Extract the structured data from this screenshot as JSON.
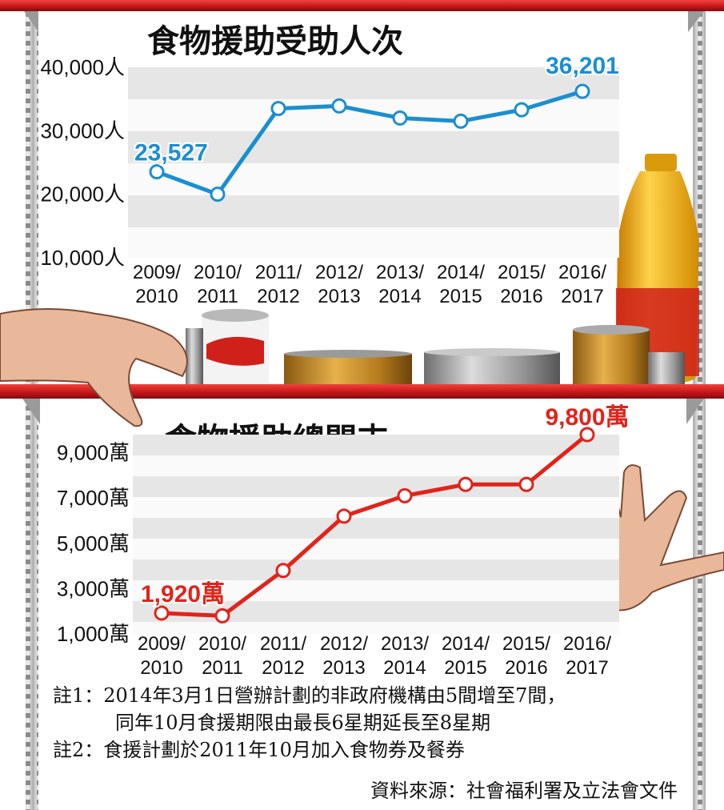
{
  "colors": {
    "shelf_red": "#d4201c",
    "line_blue": "#1a8fd0",
    "line_red": "#e2231a",
    "band_gray": "#e6e6e6"
  },
  "chart_data": [
    {
      "type": "line",
      "title": "食物援助受助人次",
      "x": [
        "2009/\n2010",
        "2010/\n2011",
        "2011/\n2012",
        "2012/\n2013",
        "2013/\n2014",
        "2014/\n2015",
        "2015/\n2016",
        "2016/\n2017"
      ],
      "yticks": [
        "10,000人",
        "20,000人",
        "30,000人",
        "40,000人"
      ],
      "ylim": [
        10000,
        40000
      ],
      "series": [
        {
          "values": [
            23527,
            20000,
            33500,
            33900,
            32000,
            31500,
            33300,
            36201
          ]
        }
      ],
      "annotations": [
        {
          "index": 0,
          "text": "23,527"
        },
        {
          "index": 7,
          "text": "36,201"
        }
      ],
      "color": "#1a8fd0",
      "grid": "alternating bands"
    },
    {
      "type": "line",
      "title": "食物援助總開支",
      "x": [
        "2009/\n2010",
        "2010/\n2011",
        "2011/\n2012",
        "2012/\n2013",
        "2013/\n2014",
        "2014/\n2015",
        "2015/\n2016",
        "2016/\n2017"
      ],
      "yticks": [
        "1,000萬",
        "3,000萬",
        "5,000萬",
        "7,000萬",
        "9,000萬"
      ],
      "ylim": [
        1000,
        9800
      ],
      "series": [
        {
          "values": [
            1920,
            1800,
            3800,
            6200,
            7100,
            7600,
            7600,
            9800
          ]
        }
      ],
      "annotations": [
        {
          "index": 0,
          "text": "1,920萬"
        },
        {
          "index": 7,
          "text": "9,800萬"
        }
      ],
      "color": "#e2231a",
      "grid": "alternating bands"
    }
  ],
  "notes": {
    "note1_line1": "註1：2014年3月1日營辦計劃的非政府機構由5間增至7間，",
    "note1_line2": "同年10月食援期限由最長6星期延長至8星期",
    "note2": "註2：食援計劃於2011年10月加入食物券及餐券",
    "source": "資料來源：社會福利署及立法會文件"
  }
}
